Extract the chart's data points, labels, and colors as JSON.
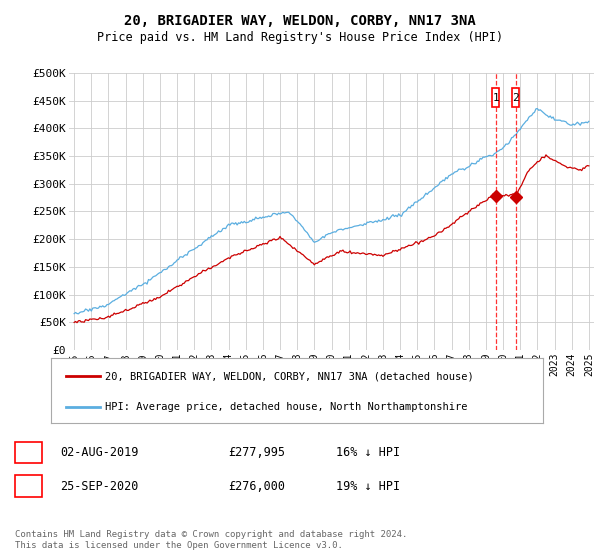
{
  "title": "20, BRIGADIER WAY, WELDON, CORBY, NN17 3NA",
  "subtitle": "Price paid vs. HM Land Registry's House Price Index (HPI)",
  "ylabel_ticks": [
    "£0",
    "£50K",
    "£100K",
    "£150K",
    "£200K",
    "£250K",
    "£300K",
    "£350K",
    "£400K",
    "£450K",
    "£500K"
  ],
  "ytick_values": [
    0,
    50000,
    100000,
    150000,
    200000,
    250000,
    300000,
    350000,
    400000,
    450000,
    500000
  ],
  "xlim_start": 1995,
  "xlim_end": 2025,
  "ylim": [
    0,
    500000
  ],
  "hpi_color": "#5baee0",
  "price_color": "#cc0000",
  "marker1_date": 2019.58,
  "marker2_date": 2020.73,
  "marker1_price": 277995,
  "marker2_price": 276000,
  "legend_line1": "20, BRIGADIER WAY, WELDON, CORBY, NN17 3NA (detached house)",
  "legend_line2": "HPI: Average price, detached house, North Northamptonshire",
  "table_rows": [
    {
      "num": "1",
      "date": "02-AUG-2019",
      "price": "£277,995",
      "change": "16% ↓ HPI"
    },
    {
      "num": "2",
      "date": "25-SEP-2020",
      "price": "£276,000",
      "change": "19% ↓ HPI"
    }
  ],
  "footnote": "Contains HM Land Registry data © Crown copyright and database right 2024.\nThis data is licensed under the Open Government Licence v3.0.",
  "grid_color": "#cccccc",
  "background_color": "#ffffff"
}
